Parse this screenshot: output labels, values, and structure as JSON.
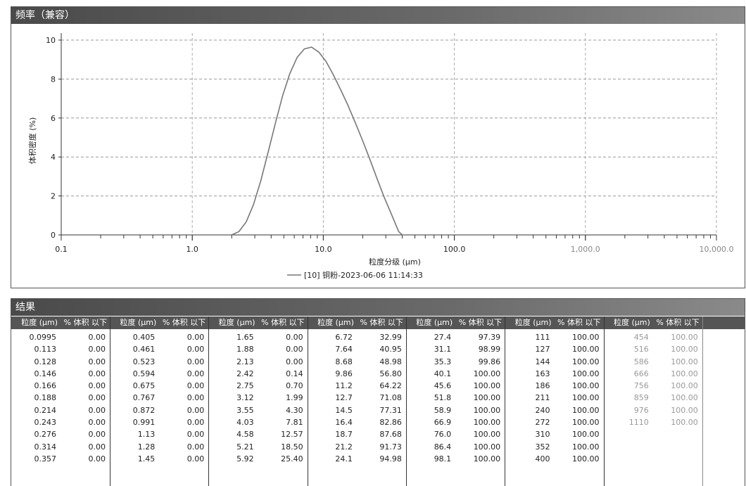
{
  "chart_panel": {
    "title": "频率（兼容）"
  },
  "chart_data": {
    "type": "line",
    "xlabel": "粒度分级 (μm)",
    "ylabel": "体积密度 (%)",
    "x_scale": "log",
    "xlim": [
      0.1,
      10000
    ],
    "ylim": [
      0,
      10
    ],
    "x_ticks": [
      "0.1",
      "1.0",
      "10.0",
      "100.0",
      "1,000.0",
      "10,000.0"
    ],
    "y_ticks": [
      "0",
      "2",
      "4",
      "6",
      "8",
      "10"
    ],
    "grid": true,
    "legend": "bottom-center",
    "series": [
      {
        "name": "[10] 铜粉-2023-06-06 11:14:33",
        "color": "#777777",
        "x": [
          2.0,
          2.27,
          2.58,
          2.93,
          3.33,
          3.78,
          4.3,
          4.88,
          5.55,
          6.31,
          7.17,
          8.14,
          9.25,
          10.5,
          11.9,
          13.5,
          15.4,
          17.5,
          19.9,
          22.6,
          25.7,
          29.2,
          33.2,
          37.6,
          40.1,
          45.6
        ],
        "y": [
          0,
          0.17,
          0.67,
          1.55,
          2.77,
          4.21,
          5.71,
          7.12,
          8.28,
          9.11,
          9.55,
          9.64,
          9.38,
          8.9,
          8.23,
          7.48,
          6.66,
          5.78,
          4.86,
          3.9,
          2.89,
          1.92,
          1.04,
          0.17,
          0,
          0
        ]
      }
    ]
  },
  "results": {
    "title": "结果",
    "col_size": "粒度 (μm)",
    "col_pct": "% 体积 以下",
    "groups": [
      [
        [
          "0.0995",
          "0.00"
        ],
        [
          "0.113",
          "0.00"
        ],
        [
          "0.128",
          "0.00"
        ],
        [
          "0.146",
          "0.00"
        ],
        [
          "0.166",
          "0.00"
        ],
        [
          "0.188",
          "0.00"
        ],
        [
          "0.214",
          "0.00"
        ],
        [
          "0.243",
          "0.00"
        ],
        [
          "0.276",
          "0.00"
        ],
        [
          "0.314",
          "0.00"
        ],
        [
          "0.357",
          "0.00"
        ]
      ],
      [
        [
          "0.405",
          "0.00"
        ],
        [
          "0.461",
          "0.00"
        ],
        [
          "0.523",
          "0.00"
        ],
        [
          "0.594",
          "0.00"
        ],
        [
          "0.675",
          "0.00"
        ],
        [
          "0.767",
          "0.00"
        ],
        [
          "0.872",
          "0.00"
        ],
        [
          "0.991",
          "0.00"
        ],
        [
          "1.13",
          "0.00"
        ],
        [
          "1.28",
          "0.00"
        ],
        [
          "1.45",
          "0.00"
        ]
      ],
      [
        [
          "1.65",
          "0.00"
        ],
        [
          "1.88",
          "0.00"
        ],
        [
          "2.13",
          "0.00"
        ],
        [
          "2.42",
          "0.14"
        ],
        [
          "2.75",
          "0.70"
        ],
        [
          "3.12",
          "1.99"
        ],
        [
          "3.55",
          "4.30"
        ],
        [
          "4.03",
          "7.81"
        ],
        [
          "4.58",
          "12.57"
        ],
        [
          "5.21",
          "18.50"
        ],
        [
          "5.92",
          "25.40"
        ]
      ],
      [
        [
          "6.72",
          "32.99"
        ],
        [
          "7.64",
          "40.95"
        ],
        [
          "8.68",
          "48.98"
        ],
        [
          "9.86",
          "56.80"
        ],
        [
          "11.2",
          "64.22"
        ],
        [
          "12.7",
          "71.08"
        ],
        [
          "14.5",
          "77.31"
        ],
        [
          "16.4",
          "82.86"
        ],
        [
          "18.7",
          "87.68"
        ],
        [
          "21.2",
          "91.73"
        ],
        [
          "24.1",
          "94.98"
        ]
      ],
      [
        [
          "27.4",
          "97.39"
        ],
        [
          "31.1",
          "98.99"
        ],
        [
          "35.3",
          "99.86"
        ],
        [
          "40.1",
          "100.00"
        ],
        [
          "45.6",
          "100.00"
        ],
        [
          "51.8",
          "100.00"
        ],
        [
          "58.9",
          "100.00"
        ],
        [
          "66.9",
          "100.00"
        ],
        [
          "76.0",
          "100.00"
        ],
        [
          "86.4",
          "100.00"
        ],
        [
          "98.1",
          "100.00"
        ]
      ],
      [
        [
          "111",
          "100.00"
        ],
        [
          "127",
          "100.00"
        ],
        [
          "144",
          "100.00"
        ],
        [
          "163",
          "100.00"
        ],
        [
          "186",
          "100.00"
        ],
        [
          "211",
          "100.00"
        ],
        [
          "240",
          "100.00"
        ],
        [
          "272",
          "100.00"
        ],
        [
          "310",
          "100.00"
        ],
        [
          "352",
          "100.00"
        ],
        [
          "400",
          "100.00"
        ]
      ],
      [
        [
          "454",
          "100.00"
        ],
        [
          "516",
          "100.00"
        ],
        [
          "586",
          "100.00"
        ],
        [
          "666",
          "100.00"
        ],
        [
          "756",
          "100.00"
        ],
        [
          "859",
          "100.00"
        ],
        [
          "976",
          "100.00"
        ],
        [
          "1110",
          "100.00"
        ]
      ]
    ]
  }
}
